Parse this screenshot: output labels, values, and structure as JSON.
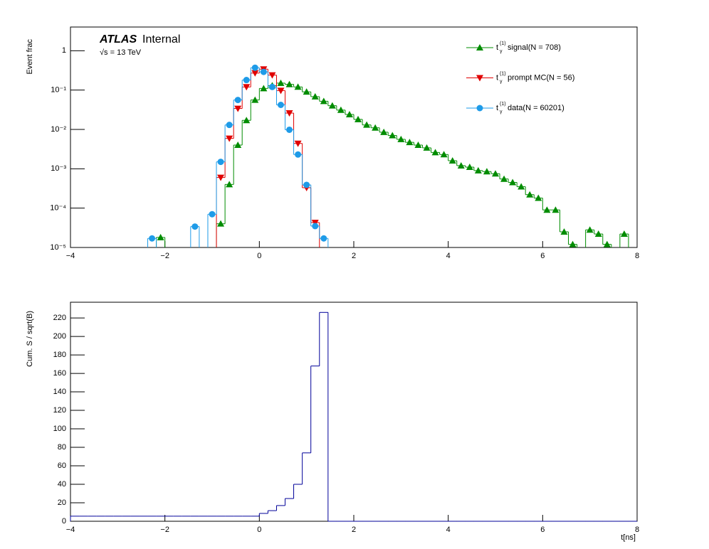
{
  "chart_data": [
    {
      "type": "histogram",
      "ylabel": "Event frac",
      "annotations": {
        "experiment": "ATLAS",
        "status": "Internal",
        "energy": "√s = 13 TeV"
      },
      "variable": {
        "symbol": "t",
        "superscript": "(1)",
        "subscript": "γ"
      },
      "log_y": true,
      "legend": "top-right",
      "xlim": [
        -4,
        8
      ],
      "ylim": [
        1e-05,
        4
      ],
      "xticks": [
        {
          "value": -4,
          "label": "−4"
        },
        {
          "value": -2,
          "label": "−2"
        },
        0,
        2,
        4,
        6,
        8
      ],
      "yticks": [
        {
          "value": 1e-05,
          "label": "10⁻⁵"
        },
        {
          "value": 0.0001,
          "label": "10⁻⁴"
        },
        {
          "value": 0.001,
          "label": "10⁻³"
        },
        {
          "value": 0.01,
          "label": "10⁻²"
        },
        {
          "value": 0.1,
          "label": "10⁻¹"
        },
        1
      ],
      "bins": [
        -4,
        -3.818,
        -3.636,
        -3.455,
        -3.273,
        -3.091,
        -2.909,
        -2.727,
        -2.545,
        -2.364,
        -2.182,
        -2,
        -1.818,
        -1.636,
        -1.455,
        -1.273,
        -1.091,
        -0.909,
        -0.727,
        -0.545,
        -0.364,
        -0.182,
        0,
        0.182,
        0.364,
        0.545,
        0.727,
        0.909,
        1.091,
        1.273,
        1.455,
        1.636,
        1.818,
        2,
        2.182,
        2.364,
        2.545,
        2.727,
        2.909,
        3.091,
        3.273,
        3.455,
        3.636,
        3.818,
        4,
        4.182,
        4.364,
        4.545,
        4.727,
        4.909,
        5.091,
        5.273,
        5.455,
        5.636,
        5.818,
        6,
        6.182,
        6.364,
        6.545,
        6.727,
        6.909,
        7.091,
        7.273,
        7.455,
        7.636,
        7.818,
        8
      ],
      "series": [
        {
          "name": "signal(N = 708)",
          "color": "#008c00",
          "marker": "triangle-up",
          "values": [
            null,
            null,
            null,
            null,
            null,
            null,
            null,
            null,
            null,
            null,
            1.8e-05,
            null,
            null,
            null,
            null,
            null,
            null,
            4e-05,
            0.0004,
            0.004,
            0.017,
            0.056,
            0.11,
            0.13,
            0.15,
            0.14,
            0.12,
            0.09,
            0.068,
            0.052,
            0.04,
            0.031,
            0.024,
            0.018,
            0.013,
            0.011,
            0.0085,
            0.007,
            0.0056,
            0.0047,
            0.004,
            0.0034,
            0.0026,
            0.0023,
            0.0016,
            0.0012,
            0.0011,
            0.0009,
            0.00085,
            0.00075,
            0.00055,
            0.00045,
            0.00035,
            0.00022,
            0.00018,
            9e-05,
            9e-05,
            2.5e-05,
            1.2e-05,
            null,
            2.8e-05,
            2.2e-05,
            1.2e-05,
            null,
            2.2e-05,
            null
          ]
        },
        {
          "name": "prompt MC(N = 56)",
          "color": "#e00000",
          "marker": "triangle-down",
          "values": [
            null,
            null,
            null,
            null,
            null,
            null,
            null,
            null,
            null,
            null,
            null,
            null,
            null,
            null,
            null,
            null,
            null,
            0.0006,
            0.0059,
            0.034,
            0.12,
            0.27,
            0.34,
            0.24,
            0.097,
            0.026,
            0.0044,
            0.00033,
            4.3e-05,
            null,
            null,
            null,
            null,
            null,
            null,
            null,
            null,
            null,
            null,
            null,
            null,
            null,
            null,
            null,
            null,
            null,
            null,
            null,
            null,
            null,
            null,
            null,
            null,
            null,
            null,
            null,
            null,
            null,
            null,
            null,
            null,
            null,
            null,
            null,
            null,
            null
          ]
        },
        {
          "name": "data(N = 60201)",
          "color": "#1e9be8",
          "marker": "circle",
          "values": [
            null,
            null,
            null,
            null,
            null,
            null,
            null,
            null,
            null,
            1.7e-05,
            null,
            null,
            null,
            null,
            3.4e-05,
            null,
            7e-05,
            0.0015,
            0.013,
            0.056,
            0.18,
            0.37,
            0.29,
            0.12,
            0.042,
            0.0098,
            0.0023,
            0.00039,
            3.5e-05,
            1.7e-05,
            null,
            null,
            null,
            null,
            null,
            null,
            null,
            null,
            null,
            null,
            null,
            null,
            null,
            null,
            null,
            null,
            null,
            null,
            null,
            null,
            null,
            null,
            null,
            null,
            null,
            null,
            null,
            null,
            null,
            null,
            null,
            null,
            null,
            null,
            null,
            null
          ]
        }
      ]
    },
    {
      "type": "histogram",
      "ylabel": "Cum. S / sqrt(B)",
      "xlabel": "t[ns]",
      "xlim": [
        -4,
        8
      ],
      "ylim": [
        0,
        237
      ],
      "xticks": [
        {
          "value": -4,
          "label": "−4"
        },
        {
          "value": -2,
          "label": "−2"
        },
        0,
        2,
        4,
        6,
        8
      ],
      "yticks": [
        0,
        20,
        40,
        60,
        80,
        100,
        120,
        140,
        160,
        180,
        200,
        220
      ],
      "bins": [
        -4,
        -3.818,
        -3.636,
        -3.455,
        -3.273,
        -3.091,
        -2.909,
        -2.727,
        -2.545,
        -2.364,
        -2.182,
        -2,
        -1.818,
        -1.636,
        -1.455,
        -1.273,
        -1.091,
        -0.909,
        -0.727,
        -0.545,
        -0.364,
        -0.182,
        0,
        0.182,
        0.364,
        0.545,
        0.727,
        0.909,
        1.091,
        1.273,
        1.455,
        1.636,
        1.818,
        2,
        2.182,
        2.364,
        2.545,
        2.727,
        2.909,
        3.091,
        3.273,
        3.455,
        3.636,
        3.818,
        4,
        4.182,
        4.364,
        4.545,
        4.727,
        4.909,
        5.091,
        5.273,
        5.455,
        5.636,
        5.818,
        6,
        6.182,
        6.364,
        6.545,
        6.727,
        6.909,
        7.091,
        7.273,
        7.455,
        7.636,
        7.818,
        8
      ],
      "color": "#000099",
      "values": [
        5.5,
        5.5,
        5.5,
        5.5,
        5.5,
        5.5,
        5.5,
        5.5,
        5.5,
        5.5,
        5.5,
        5.5,
        5.5,
        5.5,
        5.5,
        5.5,
        5.5,
        5.5,
        5.5,
        5.5,
        5.5,
        5.5,
        8.5,
        11.5,
        17,
        24.6,
        40,
        74,
        168,
        226,
        0,
        0,
        0,
        0,
        0,
        0,
        0,
        0,
        0,
        0,
        0,
        0,
        0,
        0,
        0,
        0,
        0,
        0,
        0,
        0,
        0,
        0,
        0,
        0,
        0,
        0,
        0,
        0,
        0,
        0,
        0,
        0,
        0,
        0,
        0,
        0
      ]
    }
  ]
}
